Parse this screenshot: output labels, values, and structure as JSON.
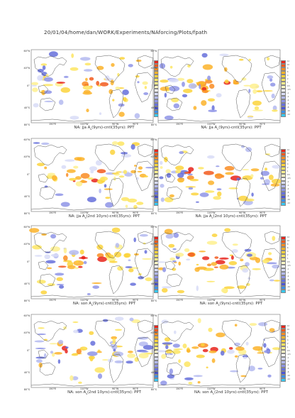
{
  "page": {
    "title": "20/01/04/home/dan/WORK/Experiments/NAforcing/Plots/fpath"
  },
  "axes": {
    "lat_labels": [
      "60°N",
      "40°N",
      "0°",
      "40°S",
      "80°S"
    ],
    "lon_labels": [
      "150°E",
      "110°W",
      "90°W",
      "90°E"
    ]
  },
  "colorbar": {
    "labels": [
      "12",
      "10",
      "8",
      "6",
      "4",
      "2",
      "1",
      "0.5",
      "-0.5",
      "-1",
      "-2",
      "-4",
      "-6",
      "-8",
      "-10",
      "-12"
    ],
    "colors": [
      "#e8251c",
      "#f25a1e",
      "#f98c23",
      "#fbb32a",
      "#fcd33c",
      "#fde561",
      "#fef08e",
      "#fff8c4",
      "#ffffff",
      "#d8dcf7",
      "#b4baf0",
      "#8e94e6",
      "#6670db",
      "#4b55d4",
      "#3c8fe6",
      "#37c8f2"
    ]
  },
  "panels": [
    {
      "caption_main": "NA: jja A",
      "sub": "s",
      "caption_rest": "(9yrs)-cntl(35yrs): PPT"
    },
    {
      "caption_main": "NA: jja A",
      "sub": "c",
      "caption_rest": "(9yrs)-cntl(35yrs): PPT"
    },
    {
      "caption_main": "NA: jja A",
      "sub": "s",
      "caption_rest": "(2nd 10yrs)-cntl(35yrs): PPT"
    },
    {
      "caption_main": "NA: jja A",
      "sub": "c",
      "caption_rest": "(2nd 10yrs)-cntl(35yrs): PPT"
    },
    {
      "caption_main": "NA: son A",
      "sub": "s",
      "caption_rest": "(9yrs)-cntl(35yrs): PPT"
    },
    {
      "caption_main": "NA: son A",
      "sub": "c",
      "caption_rest": "(9yrs)-cntl(35yrs): PPT"
    },
    {
      "caption_main": "NA: son A",
      "sub": "s",
      "caption_rest": "(2nd 10yrs)-cntl(35yrs): PPT"
    },
    {
      "caption_main": "NA: son A",
      "sub": "c",
      "caption_rest": "(2nd 10yrs)-cntl(35yrs): PPT"
    }
  ]
}
